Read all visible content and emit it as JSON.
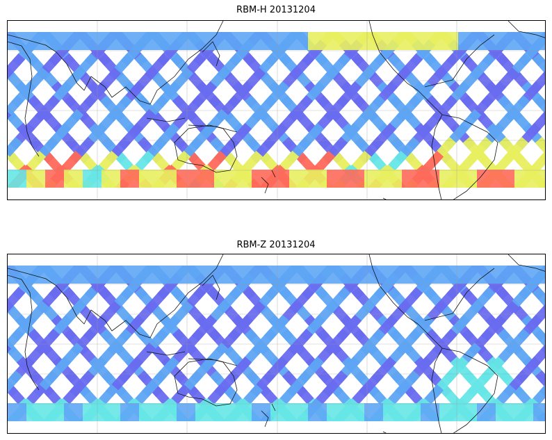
{
  "panels": [
    {
      "title": "RBM-H 20131204",
      "colors": {
        "low": "#6a6cf0",
        "mid_low": "#5ea6f5",
        "mid": "#66e6e6",
        "mid_high": "#e8f060",
        "high": "#ff6a5a"
      }
    },
    {
      "title": "RBM-Z 20131204",
      "colors": {
        "low": "#6a6cf0",
        "mid_low": "#5ea6f5",
        "mid": "#66e6e6",
        "mid_high": "#e8f060",
        "high": "#ff6a5a"
      }
    }
  ],
  "map": {
    "projection": "plate-carree",
    "grid": true,
    "coastlines": true,
    "swath_pattern": "crisscross-diagonal"
  }
}
